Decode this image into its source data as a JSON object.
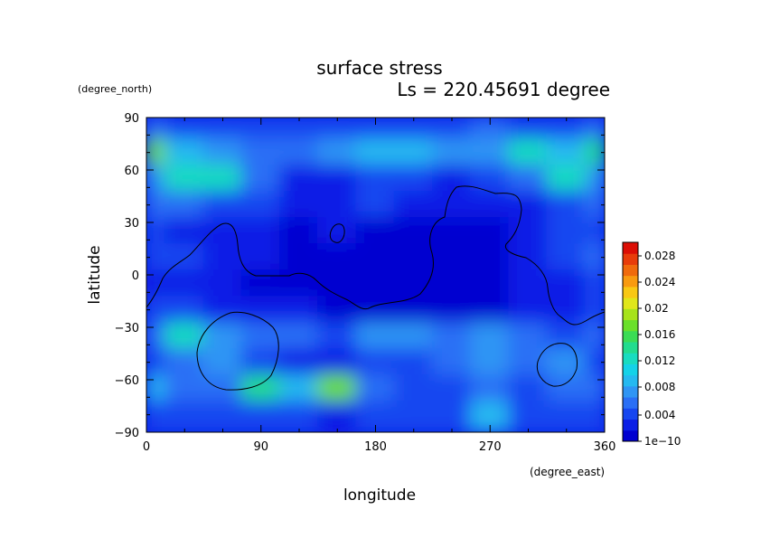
{
  "chart_data": {
    "type": "heatmap",
    "title": "surface stress",
    "subtitle": "Ls = 220.45691 degree",
    "xlabel": "longitude",
    "ylabel": "latitude",
    "x_unit": "(degree_east)",
    "y_unit": "(degree_north)",
    "xlim": [
      0,
      360
    ],
    "ylim": [
      -90,
      90
    ],
    "x_ticks": [
      "0",
      "90",
      "180",
      "270",
      "360"
    ],
    "y_ticks": [
      "90",
      "60",
      "30",
      "0",
      "−30",
      "−60",
      "−90"
    ],
    "colorbar": {
      "min": 1e-10,
      "max": 0.03,
      "labels": [
        "0.028",
        "0.024",
        "0.02",
        "0.016",
        "0.012",
        "0.008",
        "0.004",
        "1e−10"
      ],
      "colors": [
        "#0000d0",
        "#0a1ee6",
        "#1646f0",
        "#2a6ff5",
        "#2f95f4",
        "#25b9f0",
        "#14d2e8",
        "#18dcc0",
        "#22dc8e",
        "#3bdc55",
        "#6ae02a",
        "#a7e31a",
        "#e0e61a",
        "#f8c814",
        "#f89a10",
        "#f06a0c",
        "#e83c0a",
        "#dc0e05"
      ]
    },
    "x": [
      0,
      30,
      60,
      90,
      120,
      150,
      180,
      210,
      240,
      270,
      300,
      330,
      360
    ],
    "y": [
      85,
      70,
      55,
      40,
      25,
      10,
      -5,
      -20,
      -35,
      -50,
      -65,
      -80
    ],
    "z": [
      [
        0.006,
        0.005,
        0.004,
        0.005,
        0.005,
        0.004,
        0.004,
        0.005,
        0.005,
        0.006,
        0.005,
        0.004,
        0.006
      ],
      [
        0.018,
        0.01,
        0.007,
        0.006,
        0.006,
        0.008,
        0.01,
        0.009,
        0.007,
        0.008,
        0.012,
        0.01,
        0.014
      ],
      [
        0.008,
        0.012,
        0.013,
        0.006,
        0.003,
        0.003,
        0.004,
        0.004,
        0.003,
        0.004,
        0.006,
        0.012,
        0.008
      ],
      [
        0.006,
        0.006,
        0.004,
        0.004,
        0.002,
        0.002,
        0.004,
        0.003,
        0.002,
        0.002,
        0.003,
        0.004,
        0.006
      ],
      [
        0.004,
        0.003,
        0.003,
        0.002,
        0.001,
        0.002,
        0.001,
        0.001,
        0.001,
        0.001,
        0.002,
        0.005,
        0.005
      ],
      [
        0.004,
        0.004,
        0.003,
        0.002,
        0.001,
        0.001,
        0.001,
        0.001,
        0.001,
        0.001,
        0.002,
        0.004,
        0.006
      ],
      [
        0.003,
        0.003,
        0.002,
        0.001,
        0.001,
        0.001,
        0.001,
        0.001,
        0.001,
        0.001,
        0.002,
        0.003,
        0.004
      ],
      [
        0.004,
        0.004,
        0.003,
        0.002,
        0.002,
        0.001,
        0.001,
        0.001,
        0.001,
        0.001,
        0.002,
        0.003,
        0.004
      ],
      [
        0.006,
        0.012,
        0.008,
        0.006,
        0.006,
        0.005,
        0.008,
        0.007,
        0.006,
        0.007,
        0.006,
        0.005,
        0.006
      ],
      [
        0.004,
        0.006,
        0.007,
        0.004,
        0.003,
        0.003,
        0.004,
        0.004,
        0.006,
        0.007,
        0.006,
        0.008,
        0.005
      ],
      [
        0.009,
        0.006,
        0.006,
        0.014,
        0.01,
        0.018,
        0.006,
        0.005,
        0.004,
        0.006,
        0.004,
        0.006,
        0.006
      ],
      [
        0.005,
        0.004,
        0.004,
        0.004,
        0.004,
        0.003,
        0.004,
        0.005,
        0.005,
        0.01,
        0.005,
        0.004,
        0.004
      ]
    ]
  }
}
